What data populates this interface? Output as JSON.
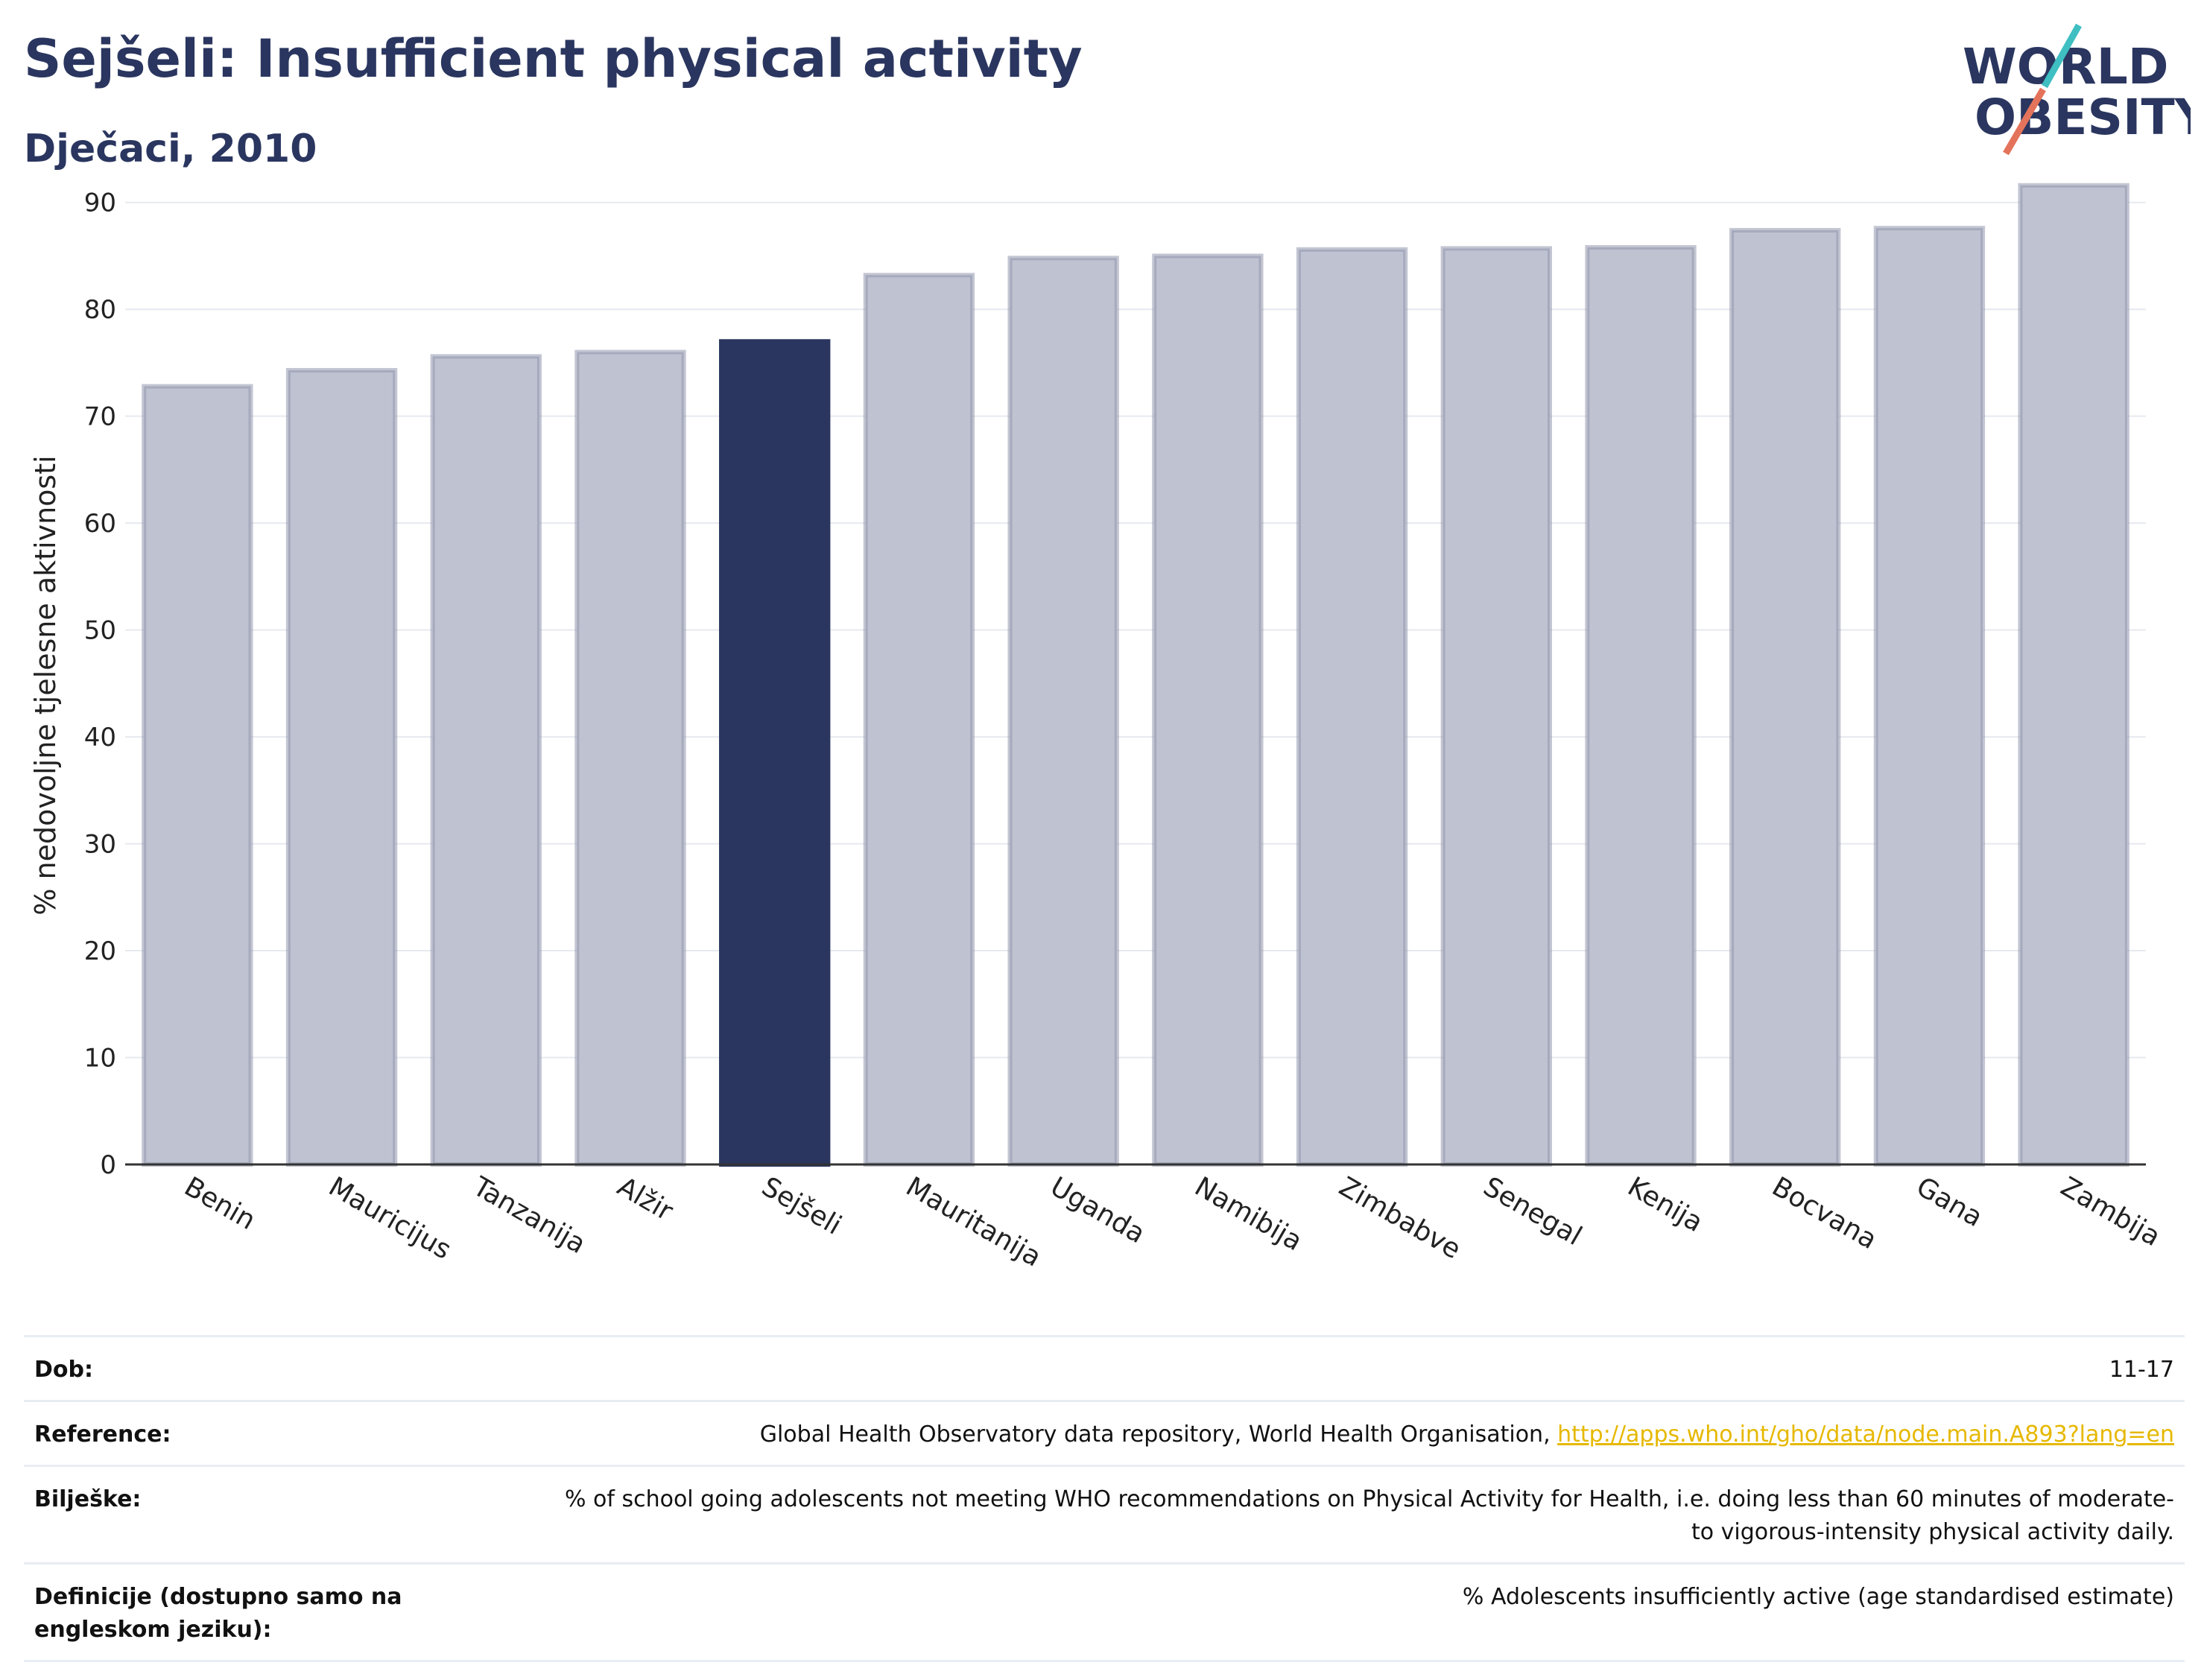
{
  "header": {
    "title": "Sejšeli: Insufficient physical activity",
    "subtitle": "Dječaci, 2010"
  },
  "logo": {
    "line1": "WORLD",
    "line2": "OBESITY"
  },
  "colors": {
    "highlight": "#2a365f",
    "bar": "#bfc2d0",
    "bar_stroke": "#9297ad",
    "accent_teal": "#3fbfc1",
    "accent_coral": "#e4735b",
    "link": "#e6b800"
  },
  "chart_data": {
    "type": "bar",
    "categories": [
      "Benin",
      "Mauricijus",
      "Tanzanija",
      "Alžir",
      "Sejšeli",
      "Mauritanija",
      "Uganda",
      "Namibija",
      "Zimbabve",
      "Senegal",
      "Kenija",
      "Bocvana",
      "Gana",
      "Zambija"
    ],
    "values": [
      72.8,
      74.3,
      75.6,
      76.0,
      77.0,
      83.2,
      84.8,
      85.0,
      85.6,
      85.7,
      85.8,
      87.4,
      87.6,
      91.6
    ],
    "highlight": "Sejšeli",
    "ylabel": "% nedovoljne tjelesne aktivnosti",
    "xlabel": "",
    "ylim": [
      0,
      95
    ],
    "yticks": [
      0,
      10,
      20,
      30,
      40,
      50,
      60,
      70,
      80,
      90
    ],
    "grid": true
  },
  "info": {
    "rows": [
      {
        "key": "Dob:",
        "value": "11-17"
      },
      {
        "key": "Reference:",
        "value": "Global Health Observatory data repository, World Health Organisation, ",
        "link": "http://apps.who.int/gho/data/node.main.A893?lang=en"
      },
      {
        "key": "Bilješke:",
        "value": "% of school going adolescents not meeting WHO recommendations on Physical Activity for Health, i.e. doing less than 60 minutes of moderate- to vigorous-intensity physical activity daily."
      },
      {
        "key": "Definicije (dostupno samo na engleskom jeziku):",
        "value": "% Adolescents insufficiently active (age standardised estimate)"
      }
    ]
  }
}
